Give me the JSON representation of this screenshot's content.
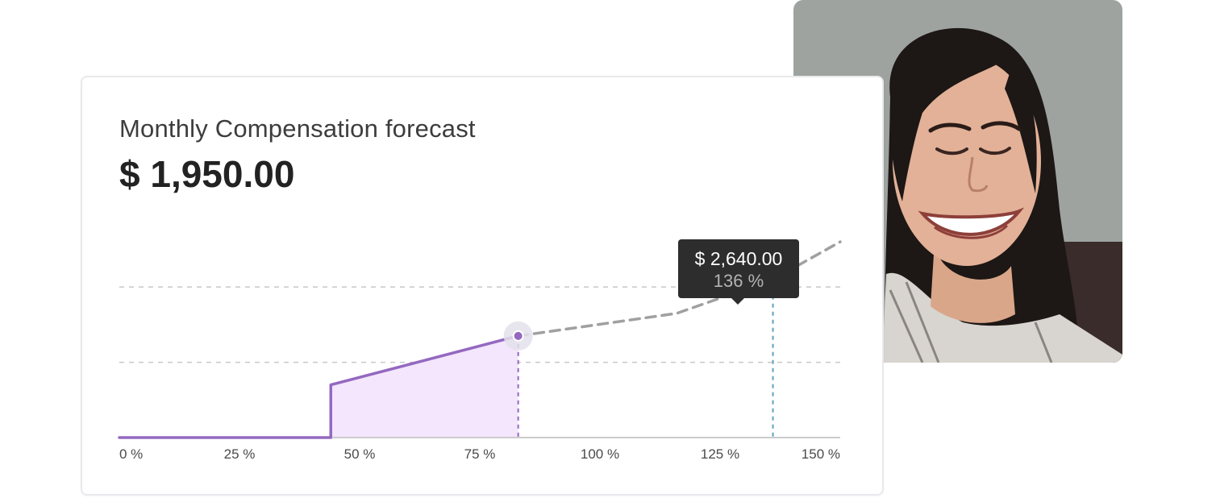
{
  "card": {
    "title": "Monthly Compensation forecast",
    "amount": "$ 1,950.00"
  },
  "tooltip": {
    "amount": "$ 2,640.00",
    "percent": "136 %"
  },
  "photo": {
    "subject": "laughing-woman-portrait"
  },
  "colors": {
    "actual_line": "#9468c0",
    "actual_fill": "#f3e6fd",
    "forecast_line": "#a0a0a0",
    "marker_teal": "#5aa3bd",
    "grid": "#c8c8c8",
    "axis": "#cccccc",
    "tooltip_bg": "#2d2d2d"
  },
  "chart_data": {
    "type": "line",
    "title": "",
    "xlabel": "",
    "ylabel": "",
    "x_ticks": [
      "0 %",
      "25 %",
      "50 %",
      "75 %",
      "100 %",
      "125 %",
      "150 %"
    ],
    "xlim": [
      0,
      150
    ],
    "ylim": [
      0,
      3500
    ],
    "grid": true,
    "series": [
      {
        "style": "solid",
        "color": "#9468c0",
        "filled": true,
        "points": [
          [
            0,
            0
          ],
          [
            44,
            0
          ],
          [
            44,
            700
          ],
          [
            83,
            1350
          ]
        ]
      },
      {
        "style": "dashed",
        "color": "#a0a0a0",
        "filled": false,
        "points": [
          [
            83,
            1350
          ],
          [
            116,
            1650
          ],
          [
            136,
            2100
          ],
          [
            150,
            2600
          ]
        ]
      }
    ],
    "markers": [
      {
        "x": 83,
        "y": 1350,
        "color": "#9468c0"
      },
      {
        "x": 136,
        "y": 2100,
        "color": "#5aa3bd"
      }
    ]
  }
}
